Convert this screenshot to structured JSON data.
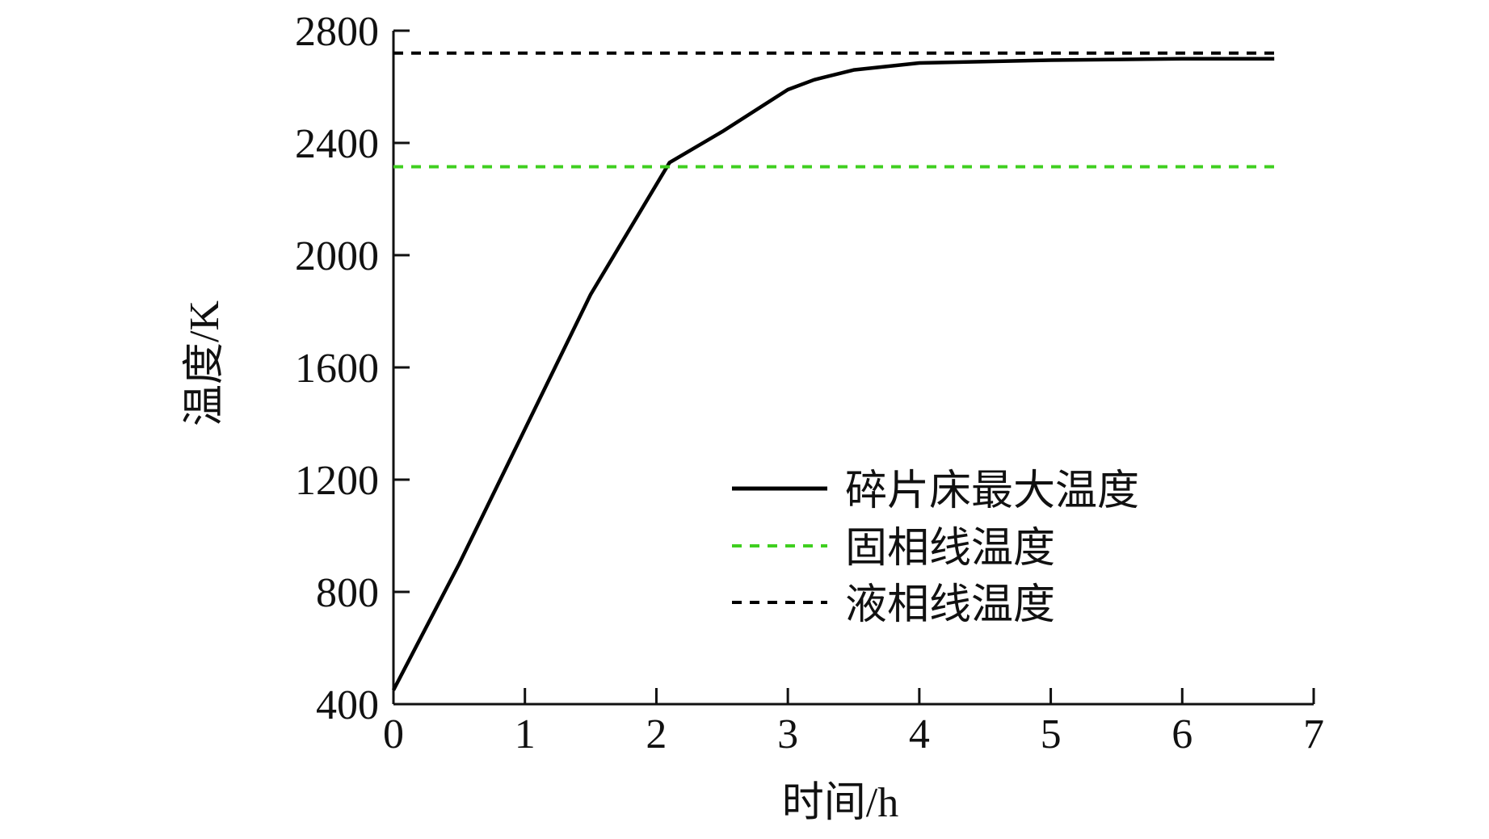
{
  "chart_data": {
    "type": "line",
    "title": "",
    "xlabel": "时间/h",
    "ylabel": "温度/K",
    "xlim": [
      0,
      7
    ],
    "ylim": [
      400,
      2800
    ],
    "xticks": [
      0,
      1,
      2,
      3,
      4,
      5,
      6,
      7
    ],
    "yticks": [
      400,
      800,
      1200,
      1600,
      2000,
      2400,
      2800
    ],
    "grid": false,
    "legend_position": "lower-right",
    "series": [
      {
        "name": "碎片床最大温度",
        "color": "#000000",
        "style": "solid",
        "points": [
          [
            0,
            450
          ],
          [
            0.5,
            900
          ],
          [
            1.0,
            1380
          ],
          [
            1.5,
            1860
          ],
          [
            2.1,
            2330
          ],
          [
            2.5,
            2440
          ],
          [
            3.0,
            2590
          ],
          [
            3.2,
            2625
          ],
          [
            3.5,
            2660
          ],
          [
            4.0,
            2685
          ],
          [
            5.0,
            2695
          ],
          [
            6.0,
            2700
          ],
          [
            6.7,
            2700
          ]
        ]
      },
      {
        "name": "固相线温度",
        "color": "#3fcf1f",
        "style": "dashed",
        "points": [
          [
            0,
            2315
          ],
          [
            6.7,
            2315
          ]
        ]
      },
      {
        "name": "液相线温度",
        "color": "#000000",
        "style": "dashed",
        "points": [
          [
            0,
            2720
          ],
          [
            6.7,
            2720
          ]
        ]
      }
    ]
  }
}
